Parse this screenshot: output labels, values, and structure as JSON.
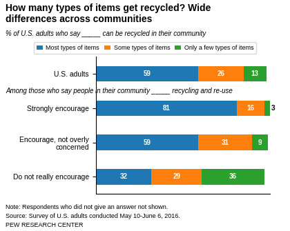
{
  "chart_data": {
    "type": "bar",
    "orientation": "horizontal",
    "stacked": true,
    "data_labels": true,
    "tick_labels": "y",
    "title": "How many types of items get recycled? Wide\ndifferences across communities",
    "subtitle": "% of U.S. adults who say _____ can be recycled in their community",
    "annotations": [
      "Among those who say people in their community _____ recycling and re-use",
      "Note: Respondents who did not give an answer not shown.",
      "Source: Survey of U.S. adults conducted May 10-June 6, 2016.",
      "PEW RESEARCH CENTER"
    ],
    "categories": [
      "U.S. adults",
      "Strongly encourage",
      "Encourage, not overly\nconcerned",
      "Do not really encourage"
    ],
    "series": [
      {
        "name": "Most types of items",
        "values": [
          59,
          81,
          59,
          32
        ]
      },
      {
        "name": "Some types of items",
        "values": [
          26,
          16,
          31,
          29
        ]
      },
      {
        "name": "Only a few types of items",
        "values": [
          13,
          3,
          9,
          36
        ]
      }
    ],
    "xlim": [
      0,
      100
    ],
    "legend": "upper center"
  }
}
